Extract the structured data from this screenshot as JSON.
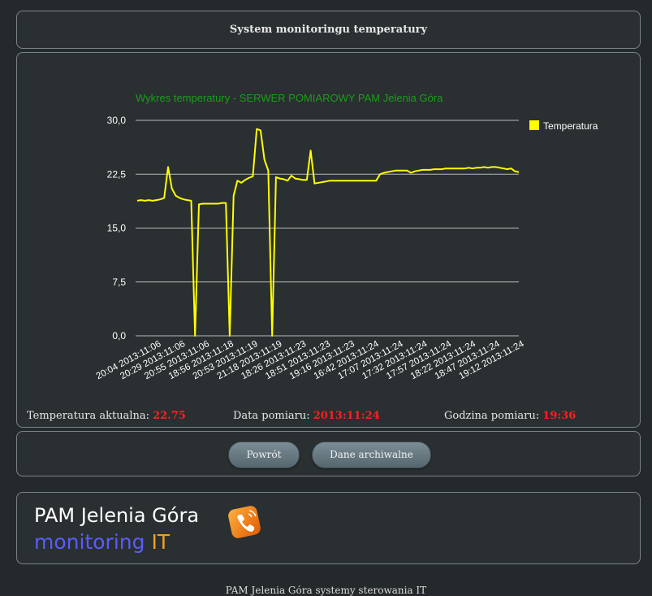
{
  "header": {
    "title": "System monitoringu temperatury"
  },
  "chart_data": {
    "type": "line",
    "title": "Wykres temperatury - SERWER POMIAROWY PAM Jelenia Góra",
    "title_color": "#1a9e1a",
    "line_color": "#ffff00",
    "ylim": [
      0,
      30
    ],
    "yticks": [
      "0,0",
      "7,5",
      "15,0",
      "22,5",
      "30,0"
    ],
    "ytick_values": [
      0,
      7.5,
      15,
      22.5,
      30
    ],
    "grid": true,
    "legend": {
      "position": "top-right",
      "label": "Temperatura"
    },
    "xtick_labels": [
      "20:04 2013:11:06",
      "20:29 2013:11:06",
      "20:55 2013:11:06",
      "18:56 2013:11:18",
      "20:53 2013:11:19",
      "21:18 2013:11:19",
      "18:26 2013:11:23",
      "18:51 2013:11:23",
      "19:16 2013:11:23",
      "16:42 2013:11:24",
      "17:07 2013:11:24",
      "17:32 2013:11:24",
      "17:57 2013:11:24",
      "18:22 2013:11:24",
      "18:47 2013:11:24",
      "19:12 2013:11:24"
    ],
    "series": [
      {
        "name": "Temperatura",
        "values": [
          18.8,
          18.9,
          18.8,
          18.9,
          18.8,
          18.9,
          19,
          19.2,
          23.5,
          20.5,
          19.5,
          19.2,
          19,
          18.9,
          18.8,
          0,
          18.3,
          18.4,
          18.4,
          18.4,
          18.4,
          18.4,
          18.5,
          18.5,
          0,
          19.5,
          21.6,
          21.3,
          21.7,
          22,
          22.2,
          28.8,
          28.6,
          24.5,
          23,
          0,
          22.1,
          21.9,
          21.8,
          21.6,
          22.3,
          21.9,
          21.8,
          21.7,
          21.7,
          25.8,
          21.2,
          21.3,
          21.4,
          21.5,
          21.6,
          21.6,
          21.6,
          21.6,
          21.6,
          21.6,
          21.6,
          21.6,
          21.6,
          21.6,
          21.6,
          21.6,
          21.6,
          22.5,
          22.7,
          22.8,
          22.9,
          23,
          23,
          23,
          23,
          22.7,
          22.9,
          23,
          23.1,
          23.1,
          23.1,
          23.2,
          23.2,
          23.2,
          23.3,
          23.3,
          23.3,
          23.3,
          23.3,
          23.3,
          23.4,
          23.3,
          23.4,
          23.4,
          23.5,
          23.4,
          23.5,
          23.5,
          23.4,
          23.3,
          23.2,
          23.3,
          22.9,
          22.8
        ]
      }
    ]
  },
  "readings": {
    "temp_label": "Temperatura aktualna:",
    "temp_value": "22.75",
    "date_label": "Data pomiaru:",
    "date_value": "2013:11:24",
    "time_label": "Godzina pomiaru:",
    "time_value": "19:36"
  },
  "buttons": {
    "back": "Powrót",
    "archive": "Dane archiwalne"
  },
  "brand": {
    "title": "PAM Jelenia Góra",
    "sub_a": "monitoring",
    "sub_b": "IT",
    "logo_icon": "phone-logo-icon"
  },
  "footer": {
    "text": "PAM Jelenia Góra systemy sterowania IT"
  }
}
